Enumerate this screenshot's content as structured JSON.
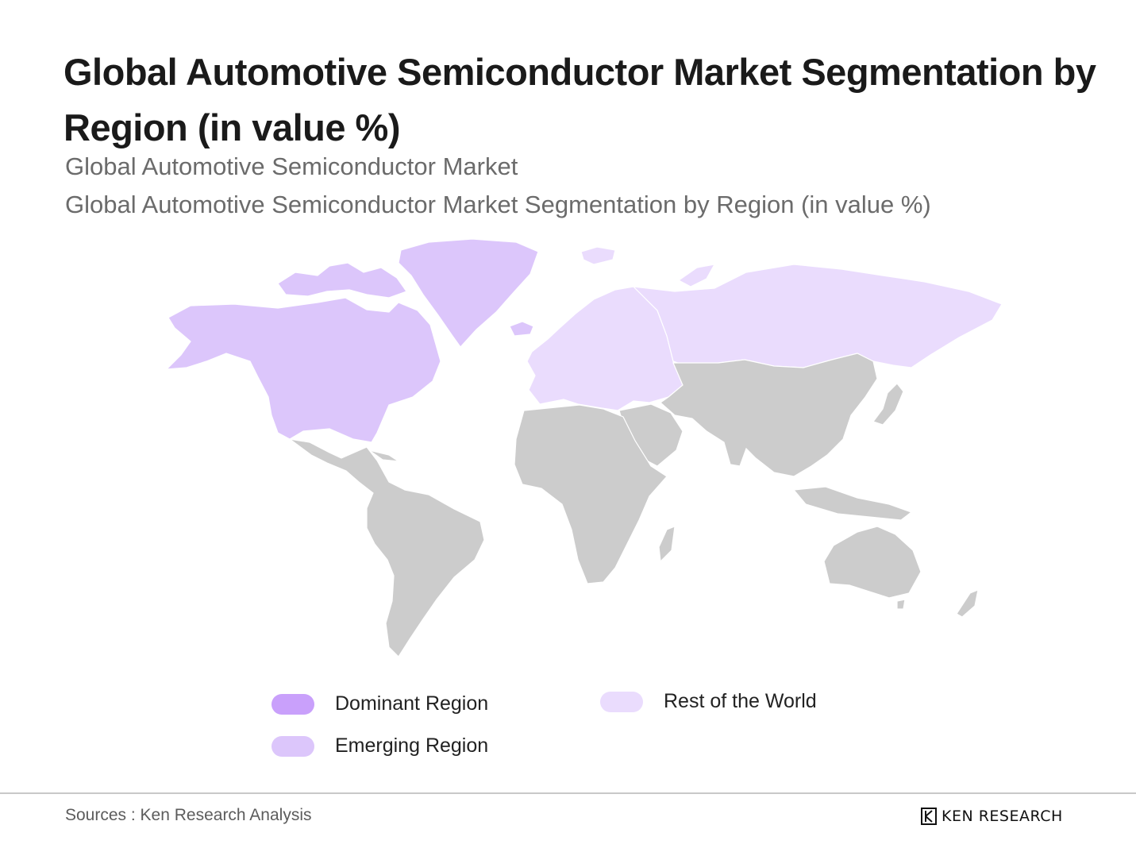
{
  "title": "Global Automotive Semiconductor Market Segmentation by Region (in value %)",
  "subtitle_1": "Global Automotive Semiconductor Market",
  "subtitle_2": "Global Automotive Semiconductor Market Segmentation by Region (in value %)",
  "legend": {
    "dominant": {
      "label": "Dominant Region",
      "color": "#c9a0fb"
    },
    "emerging": {
      "label": "Emerging Region",
      "color": "#dcc6fb"
    },
    "rest": {
      "label": "Rest of the World",
      "color": "#eadcfd"
    }
  },
  "map_colors": {
    "no_data": "#cccccc"
  },
  "footer": {
    "source": "Sources : Ken Research Analysis",
    "brand": "KEN RESEARCH"
  }
}
